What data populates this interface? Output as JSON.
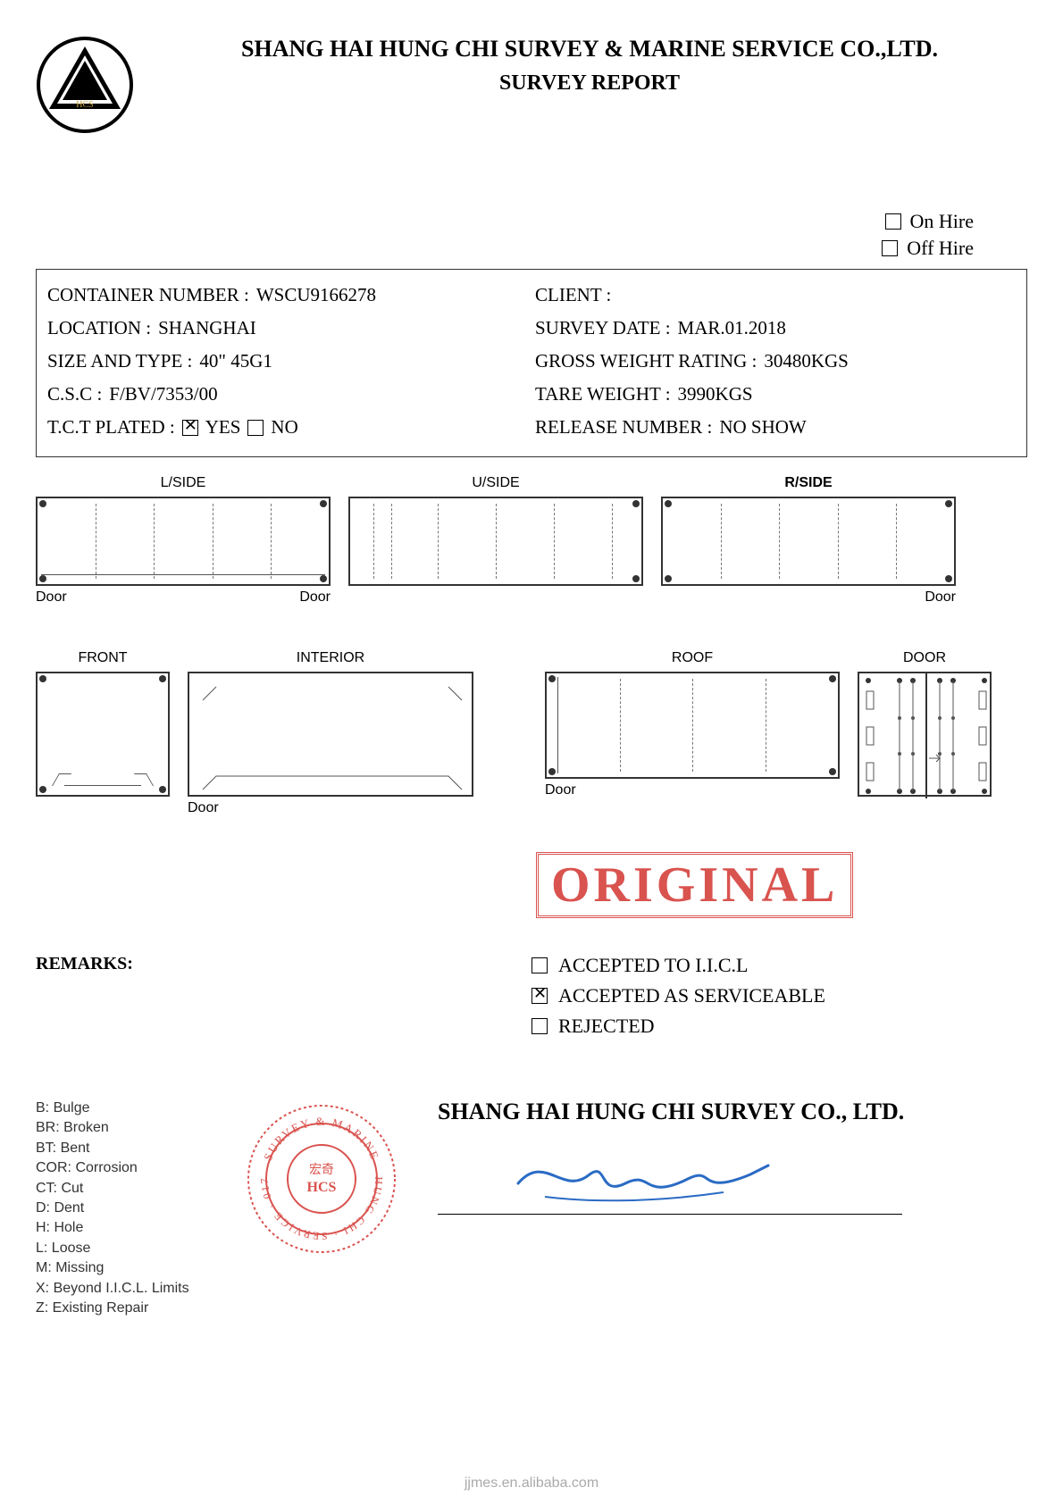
{
  "header": {
    "company": "SHANG HAI HUNG CHI SURVEY & MARINE SERVICE CO.,LTD.",
    "title": "SURVEY REPORT"
  },
  "hire": {
    "on_hire": {
      "label": "On Hire",
      "checked": false
    },
    "off_hire": {
      "label": "Off Hire",
      "checked": false
    }
  },
  "info": {
    "container_number": {
      "label": "CONTAINER NUMBER :",
      "value": "WSCU9166278"
    },
    "client": {
      "label": "CLIENT :",
      "value": ""
    },
    "location": {
      "label": "LOCATION :",
      "value": "SHANGHAI"
    },
    "survey_date": {
      "label": "SURVEY DATE :",
      "value": "MAR.01.2018"
    },
    "size_type": {
      "label": "SIZE AND TYPE :",
      "value": "40\" 45G1"
    },
    "gross_weight": {
      "label": "GROSS WEIGHT RATING :",
      "value": "30480KGS"
    },
    "csc": {
      "label": "C.S.C :",
      "value": "F/BV/7353/00"
    },
    "tare_weight": {
      "label": "TARE WEIGHT :",
      "value": "3990KGS"
    },
    "tct": {
      "label": "T.C.T PLATED :",
      "yes": "YES",
      "no": "NO",
      "yes_checked": true,
      "no_checked": false
    },
    "release": {
      "label": "RELEASE NUMBER :",
      "value": "NO SHOW"
    }
  },
  "diagrams": {
    "lside": "L/SIDE",
    "uside": "U/SIDE",
    "rside": "R/SIDE",
    "front": "FRONT",
    "interior": "INTERIOR",
    "roof": "ROOF",
    "door": "DOOR",
    "door_label": "Door"
  },
  "stamp": "ORIGINAL",
  "remarks": {
    "label": "REMARKS:",
    "accepted_iicl": {
      "label": "ACCEPTED TO I.I.C.L",
      "checked": false
    },
    "accepted_serviceable": {
      "label": "ACCEPTED AS SERVICEABLE",
      "checked": true
    },
    "rejected": {
      "label": "REJECTED",
      "checked": false
    }
  },
  "legend": [
    "B: Bulge",
    "BR: Broken",
    "BT: Bent",
    "COR: Corrosion",
    "CT: Cut",
    "D: Dent",
    "H: Hole",
    "L: Loose",
    "M: Missing",
    "X: Beyond I.I.C.L. Limits",
    "Z: Existing Repair"
  ],
  "signature": {
    "company": "SHANG HAI HUNG CHI SURVEY CO., LTD."
  },
  "watermark": "jjmes.en.alibaba.com",
  "colors": {
    "text": "#000000",
    "stamp": "#d9534f",
    "seal": "#d9534f",
    "signature": "#2a6bc4",
    "diagram_border": "#333333",
    "watermark": "#aaaaaa"
  }
}
